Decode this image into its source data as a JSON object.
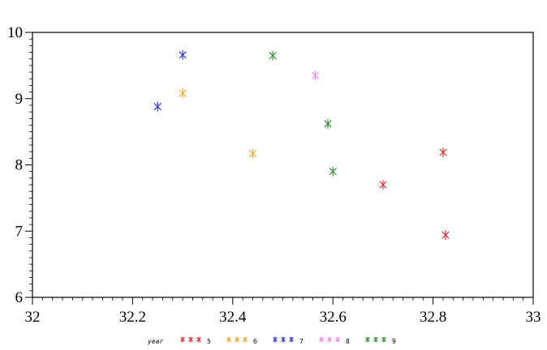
{
  "chart_data": {
    "type": "scatter",
    "title": "",
    "xlabel": "",
    "ylabel": "",
    "xlim": [
      32,
      33
    ],
    "ylim": [
      6,
      10
    ],
    "x_ticks": [
      32,
      32.2,
      32.4,
      32.6,
      32.8,
      33
    ],
    "x_tick_labels": [
      "32",
      "32.2",
      "32.4",
      "32.6",
      "32.8",
      "33"
    ],
    "y_ticks": [
      6,
      7,
      8,
      9,
      10
    ],
    "y_tick_labels": [
      "6",
      "7",
      "8",
      "9",
      "10"
    ],
    "marker": "asterisk",
    "grid": false,
    "legend": {
      "title": "year",
      "placement": "bottom"
    },
    "series": [
      {
        "name": "5",
        "color": "#e8202a",
        "points": [
          [
            32.82,
            8.19
          ],
          [
            32.825,
            6.94
          ],
          [
            32.7,
            7.7
          ]
        ]
      },
      {
        "name": "6",
        "color": "#f5a623",
        "points": [
          [
            32.3,
            9.08
          ],
          [
            32.44,
            8.17
          ]
        ]
      },
      {
        "name": "7",
        "color": "#2a2ae0",
        "points": [
          [
            32.3,
            9.66
          ],
          [
            32.25,
            8.88
          ]
        ]
      },
      {
        "name": "8",
        "color": "#ee82ee",
        "points": [
          [
            32.565,
            9.35
          ]
        ]
      },
      {
        "name": "9",
        "color": "#2e8b2e",
        "points": [
          [
            32.48,
            9.65
          ],
          [
            32.59,
            8.62
          ],
          [
            32.6,
            7.9
          ]
        ]
      }
    ]
  }
}
